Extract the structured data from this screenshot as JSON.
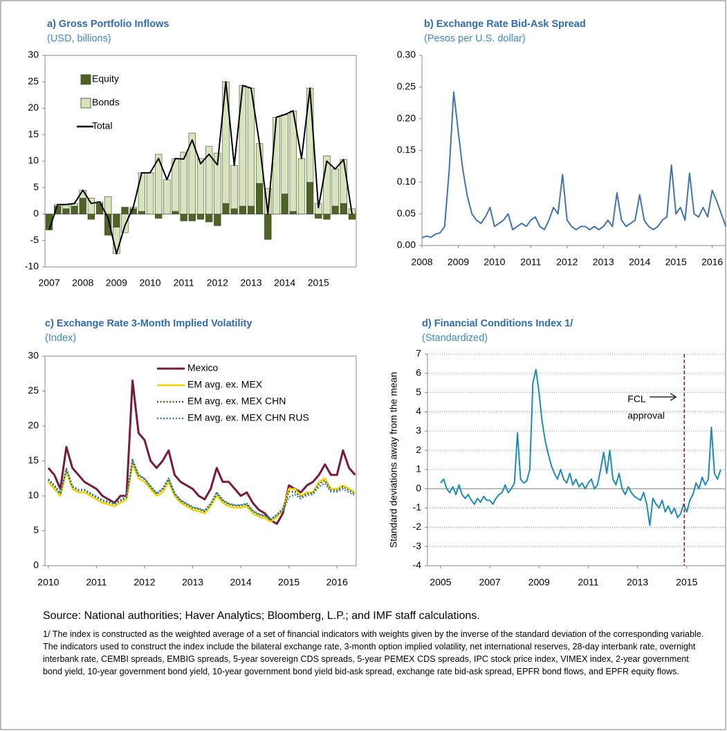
{
  "chart_data": [
    {
      "type": "bar",
      "title": "a) Gross Portfolio Inflows",
      "subtitle": "(USD, billions)",
      "categories": [
        "2007",
        null,
        null,
        null,
        "2008",
        null,
        null,
        null,
        "2009",
        null,
        null,
        null,
        "2010",
        null,
        null,
        null,
        "2011",
        null,
        null,
        null,
        "2012",
        null,
        null,
        null,
        "2013",
        null,
        null,
        null,
        "2014",
        null,
        null,
        null,
        "2015",
        null,
        null,
        null,
        null
      ],
      "series": [
        {
          "name": "Equity",
          "color": "#4f6228",
          "values": [
            -3,
            1.5,
            1,
            1.5,
            3,
            -1,
            2,
            -4,
            -2.5,
            1.3,
            1,
            0.5,
            0,
            -0.8,
            0,
            0.5,
            -1.3,
            -1.3,
            -1,
            -1.5,
            -2.2,
            2,
            1,
            1.5,
            1.5,
            5.8,
            -4.8,
            0,
            3.8,
            0.5,
            0,
            6,
            -0.8,
            -1,
            1.5,
            2,
            -1
          ]
        },
        {
          "name": "Bonds",
          "color": "#d7e4bd",
          "values": [
            0,
            0.3,
            0.8,
            0.5,
            1.5,
            3,
            0.3,
            3.3,
            -5,
            -3.5,
            0.3,
            7.3,
            7.8,
            11.3,
            6.5,
            10,
            11.7,
            15.3,
            10.5,
            12.8,
            11.5,
            23,
            8.2,
            22.8,
            22.3,
            7.5,
            4.8,
            18.3,
            15,
            19,
            10.5,
            17.8,
            2,
            11,
            7,
            8.3,
            1
          ]
        },
        {
          "name": "Total",
          "color": "#000000",
          "type": "line",
          "values": [
            -3,
            1.8,
            1.8,
            2,
            4.5,
            2,
            2.3,
            -0.7,
            -7.5,
            -2.2,
            1.3,
            7.8,
            7.8,
            10.5,
            6.5,
            10.5,
            10.4,
            14,
            9.5,
            11.3,
            9.3,
            25,
            9.2,
            24.3,
            23.8,
            13.3,
            0,
            18.3,
            18.8,
            19.5,
            10.5,
            23.8,
            1.2,
            10,
            8.5,
            10.3,
            0
          ]
        }
      ],
      "ylim": [
        -10,
        30
      ],
      "yticks": [
        -10,
        -5,
        0,
        5,
        10,
        15,
        20,
        25,
        30
      ],
      "legend": "upper left",
      "grid": false
    },
    {
      "type": "line",
      "title": "b) Exchange Rate Bid-Ask Spread",
      "subtitle": "(Pesos per U.S. dollar)",
      "color": "#3e74b0",
      "x": [
        2008,
        2008.125,
        2008.25,
        2008.375,
        2008.5,
        2008.625,
        2008.75,
        2008.875,
        2009,
        2009.125,
        2009.25,
        2009.375,
        2009.5,
        2009.625,
        2009.75,
        2009.875,
        2010,
        2010.125,
        2010.25,
        2010.375,
        2010.5,
        2010.625,
        2010.75,
        2010.875,
        2011,
        2011.125,
        2011.25,
        2011.375,
        2011.5,
        2011.625,
        2011.75,
        2011.875,
        2012,
        2012.125,
        2012.25,
        2012.375,
        2012.5,
        2012.625,
        2012.75,
        2012.875,
        2013,
        2013.125,
        2013.25,
        2013.375,
        2013.5,
        2013.625,
        2013.75,
        2013.875,
        2014,
        2014.125,
        2014.25,
        2014.375,
        2014.5,
        2014.625,
        2014.75,
        2014.875,
        2015,
        2015.125,
        2015.25,
        2015.375,
        2015.5,
        2015.625,
        2015.75,
        2015.875,
        2016,
        2016.125,
        2016.25,
        2016.375
      ],
      "values": [
        0.012,
        0.015,
        0.013,
        0.018,
        0.02,
        0.03,
        0.118,
        0.242,
        0.18,
        0.12,
        0.078,
        0.05,
        0.04,
        0.035,
        0.045,
        0.06,
        0.03,
        0.035,
        0.04,
        0.05,
        0.025,
        0.03,
        0.035,
        0.03,
        0.04,
        0.045,
        0.03,
        0.025,
        0.04,
        0.06,
        0.05,
        0.112,
        0.04,
        0.03,
        0.025,
        0.03,
        0.03,
        0.025,
        0.03,
        0.025,
        0.03,
        0.04,
        0.03,
        0.083,
        0.04,
        0.03,
        0.035,
        0.04,
        0.08,
        0.04,
        0.03,
        0.025,
        0.03,
        0.04,
        0.045,
        0.127,
        0.05,
        0.06,
        0.04,
        0.114,
        0.05,
        0.045,
        0.06,
        0.045,
        0.087,
        0.07,
        0.05,
        0.03
      ],
      "xlim": [
        2008,
        2016.35
      ],
      "xticks": [
        2008,
        2009,
        2010,
        2011,
        2012,
        2013,
        2014,
        2015,
        2016
      ],
      "ylim": [
        0,
        0.3
      ],
      "yticks": [
        {
          "value": 0,
          "label": "0.00"
        },
        {
          "value": 0.05,
          "label": "0.05"
        },
        {
          "value": 0.1,
          "label": "0.10"
        },
        {
          "value": 0.15,
          "label": "0.15"
        },
        {
          "value": 0.2,
          "label": "0.20"
        },
        {
          "value": 0.25,
          "label": "0.25"
        },
        {
          "value": 0.3,
          "label": "0.30"
        }
      ],
      "grid": false
    },
    {
      "type": "line",
      "title": "c) Exchange Rate 3-Month Implied Volatility",
      "subtitle": "(Index)",
      "x": [
        2010,
        2010.125,
        2010.25,
        2010.375,
        2010.5,
        2010.625,
        2010.75,
        2010.875,
        2011,
        2011.125,
        2011.25,
        2011.375,
        2011.5,
        2011.625,
        2011.75,
        2011.875,
        2012,
        2012.125,
        2012.25,
        2012.375,
        2012.5,
        2012.625,
        2012.75,
        2012.875,
        2013,
        2013.125,
        2013.25,
        2013.375,
        2013.5,
        2013.625,
        2013.75,
        2013.875,
        2014,
        2014.125,
        2014.25,
        2014.375,
        2014.5,
        2014.625,
        2014.75,
        2014.875,
        2015,
        2015.125,
        2015.25,
        2015.375,
        2015.5,
        2015.625,
        2015.75,
        2015.875,
        2016,
        2016.125,
        2016.25,
        2016.375
      ],
      "series": [
        {
          "name": "Mexico",
          "color": "#7b1a3c",
          "width": 3,
          "values": [
            14,
            13,
            11,
            17,
            14,
            13,
            12,
            11.5,
            11,
            10,
            9.5,
            9,
            10,
            10,
            26.5,
            19,
            18,
            15,
            14,
            15,
            16.5,
            13,
            12,
            11.5,
            11,
            10,
            9.5,
            11,
            14,
            12,
            12,
            11,
            10,
            10.5,
            9,
            8,
            7.5,
            6.5,
            6,
            7.5,
            11.5,
            11,
            10.5,
            11.5,
            12,
            13,
            14.5,
            13,
            13,
            16.5,
            14,
            13
          ]
        },
        {
          "name": "EM avg. ex. MEX",
          "color": "#f0d400",
          "width": 2.5,
          "values": [
            12,
            11,
            10,
            13.5,
            11,
            10.5,
            10.5,
            10,
            9.5,
            9,
            8.8,
            8.5,
            9,
            9.5,
            14.5,
            12.5,
            12,
            11,
            10,
            10.5,
            12,
            10,
            9,
            8.5,
            8,
            7.8,
            7.5,
            8.5,
            10,
            9,
            8.5,
            8.3,
            8.3,
            8.5,
            7.5,
            7,
            6.8,
            6.3,
            7,
            8,
            11,
            11,
            10,
            10.5,
            10.5,
            12,
            12.5,
            11,
            11,
            11.5,
            11,
            10.5
          ]
        },
        {
          "name": "EM avg. ex. MEX CHN",
          "color": "#4f6228",
          "width": 2.5,
          "dash": "dotted",
          "values": [
            12.3,
            11.4,
            10.3,
            13.8,
            11.3,
            10.8,
            10.8,
            10.3,
            9.8,
            9.3,
            9.1,
            8.8,
            9.3,
            9.8,
            15,
            12.9,
            12.4,
            11.3,
            10.3,
            10.9,
            12.4,
            10.3,
            9.3,
            8.8,
            8.3,
            8.1,
            7.8,
            8.8,
            10.4,
            9.3,
            8.8,
            8.6,
            8.6,
            8.8,
            7.8,
            7.3,
            7.1,
            6.6,
            7.3,
            8.2,
            10.6,
            10.6,
            9.8,
            10.3,
            10.4,
            11.7,
            12.2,
            10.8,
            10.8,
            11.3,
            10.8,
            10.3
          ]
        },
        {
          "name": "EM avg. ex. MEX CHN RUS",
          "color": "#31859c",
          "width": 2.5,
          "dash": "dotted",
          "values": [
            12.4,
            11.5,
            10.4,
            13.9,
            11.4,
            10.9,
            10.9,
            10.4,
            9.9,
            9.4,
            9.2,
            8.9,
            9.4,
            9.9,
            15.2,
            13,
            12.5,
            11.4,
            10.4,
            11,
            12.5,
            10.4,
            9.4,
            8.9,
            8.4,
            8.2,
            7.9,
            8.9,
            10.5,
            9.4,
            8.9,
            8.7,
            8.7,
            8.9,
            7.9,
            7.4,
            7.2,
            6.7,
            7.2,
            7.9,
            9.8,
            10.2,
            9.6,
            10.1,
            10.2,
            11.3,
            11.8,
            10.6,
            10.6,
            11,
            10.5,
            10.1
          ]
        }
      ],
      "xlim": [
        2009.93,
        2016.4
      ],
      "xticks": [
        2010,
        2011,
        2012,
        2013,
        2014,
        2015,
        2016
      ],
      "ylim": [
        0,
        30
      ],
      "yticks": [
        0,
        5,
        10,
        15,
        20,
        25,
        30
      ],
      "legend": "upper center",
      "grid": false
    },
    {
      "type": "line",
      "title": "d) Financial Conditions Index 1/",
      "subtitle": "(Standardized)",
      "y_label": "Standard deviations away from the mean",
      "color": "#1a8db5",
      "x": [
        2005,
        2005.125,
        2005.25,
        2005.375,
        2005.5,
        2005.625,
        2005.75,
        2005.875,
        2006,
        2006.125,
        2006.25,
        2006.375,
        2006.5,
        2006.625,
        2006.75,
        2006.875,
        2007,
        2007.125,
        2007.25,
        2007.375,
        2007.5,
        2007.625,
        2007.75,
        2007.875,
        2008,
        2008.125,
        2008.25,
        2008.375,
        2008.5,
        2008.625,
        2008.75,
        2008.875,
        2009,
        2009.125,
        2009.25,
        2009.375,
        2009.5,
        2009.625,
        2009.75,
        2009.875,
        2010,
        2010.125,
        2010.25,
        2010.375,
        2010.5,
        2010.625,
        2010.75,
        2010.875,
        2011,
        2011.125,
        2011.25,
        2011.375,
        2011.5,
        2011.625,
        2011.75,
        2011.875,
        2012,
        2012.125,
        2012.25,
        2012.375,
        2012.5,
        2012.625,
        2012.75,
        2012.875,
        2013,
        2013.125,
        2013.25,
        2013.375,
        2013.5,
        2013.625,
        2013.75,
        2013.875,
        2014,
        2014.125,
        2014.25,
        2014.375,
        2014.5,
        2014.625,
        2014.75,
        2014.875,
        2015,
        2015.125,
        2015.25,
        2015.375,
        2015.5,
        2015.625,
        2015.75,
        2015.875,
        2016,
        2016.125,
        2016.25,
        2016.375
      ],
      "values": [
        0.3,
        0.5,
        0,
        -0.2,
        0.1,
        -0.3,
        0.2,
        -0.3,
        -0.5,
        -0.3,
        -0.6,
        -0.8,
        -0.5,
        -0.7,
        -0.4,
        -0.6,
        -0.6,
        -0.8,
        -0.5,
        -0.3,
        -0.2,
        0.2,
        -0.2,
        0,
        0.3,
        2.9,
        0.5,
        0.3,
        0.4,
        1,
        5.5,
        6.2,
        5,
        3.5,
        2.5,
        1.8,
        1.2,
        0.8,
        0.5,
        1,
        0.5,
        0.3,
        0.8,
        0.2,
        0.5,
        0.1,
        0.3,
        0,
        0.3,
        0.5,
        0,
        0.2,
        1,
        1.9,
        0.8,
        2,
        0.5,
        0.2,
        0.8,
        0,
        -0.3,
        0.1,
        -0.2,
        -0.4,
        -0.5,
        -0.6,
        -0.2,
        -0.8,
        -1.9,
        -0.5,
        -0.8,
        -1,
        -0.6,
        -1.2,
        -0.9,
        -1.3,
        -1,
        -1.5,
        -1.3,
        -0.8,
        -1.2,
        -0.6,
        -0.3,
        0.3,
        0,
        0.6,
        0.2,
        0.5,
        3.2,
        0.8,
        0.5,
        1
      ],
      "xlim": [
        2004.47,
        2016.55
      ],
      "xticks": [
        2005,
        2007,
        2009,
        2011,
        2013,
        2015
      ],
      "ylim": [
        -4,
        7
      ],
      "yticks": [
        -4,
        -3,
        -2,
        -1,
        0,
        1,
        2,
        3,
        4,
        5,
        6,
        7
      ],
      "grid": true,
      "vline": {
        "x": 2014.9,
        "color": "#c00000",
        "label_lines": [
          "FCL",
          "approval"
        ]
      }
    }
  ],
  "notes": {
    "source": "Source: National authorities; Haver Analytics; Bloomberg, L.P.; and IMF staff calculations.",
    "footnote": "1/ The index is constructed as the weighted average of a set of financial indicators with weights given by the inverse of the standard deviation of the corresponding variable. The indicators used to construct the index include the bilateral exchange rate, 3-month option implied volatility, net international reserves, 28-day interbank rate, overnight interbank rate, CEMBI spreads, EMBIG spreads, 5-year sovereign CDS spreads, 5-year PEMEX CDS spreads, IPC stock price index, VIMEX index, 2-year government bond yield, 10-year government bond yield, 10-year government bond yield bid-ask spread, exchange rate bid-ask spread, EPFR bond flows, and EPFR equity flows."
  }
}
